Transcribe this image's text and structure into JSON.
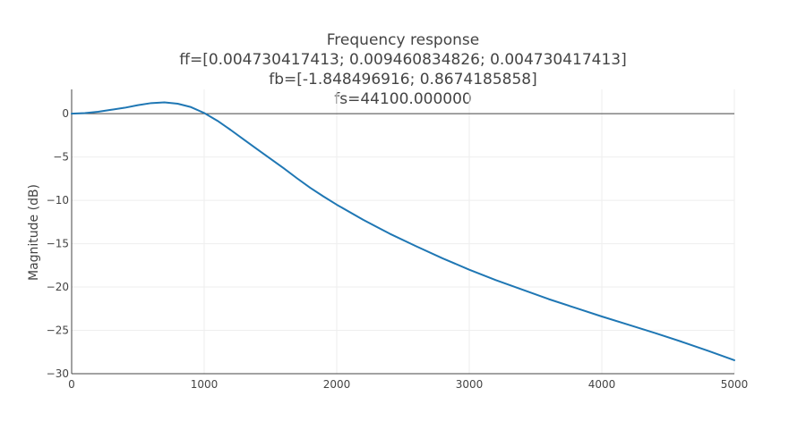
{
  "chart_data": {
    "type": "line",
    "title_lines": [
      "Frequency response",
      "ff=[0.004730417413; 0.009460834826; 0.004730417413]",
      "fb=[-1.848496916; 0.8674185858]",
      "fs=44100.000000"
    ],
    "xlabel": "",
    "ylabel": "Magnitude (dB)",
    "xlim": [
      0,
      5000
    ],
    "ylim": [
      -30,
      2.8
    ],
    "x_ticks": [
      0,
      1000,
      2000,
      3000,
      4000,
      5000
    ],
    "y_ticks": [
      0,
      -5,
      -10,
      -15,
      -20,
      -25,
      -30
    ],
    "y_tick_labels": [
      "0",
      "−5",
      "−10",
      "−15",
      "−20",
      "−25",
      "−30"
    ],
    "grid": true,
    "zero_line": true,
    "series": [
      {
        "color": "#1f77b4",
        "x": [
          0,
          100,
          200,
          300,
          400,
          500,
          600,
          700,
          800,
          900,
          1000,
          1100,
          1200,
          1300,
          1400,
          1500,
          1600,
          1700,
          1800,
          1900,
          2000,
          2200,
          2400,
          2600,
          2800,
          3000,
          3200,
          3400,
          3600,
          3800,
          4000,
          4200,
          4400,
          4600,
          4800,
          5000
        ],
        "y": [
          0.0,
          0.07,
          0.22,
          0.45,
          0.68,
          0.98,
          1.22,
          1.3,
          1.15,
          0.76,
          0.08,
          -0.82,
          -1.88,
          -3.0,
          -4.1,
          -5.2,
          -6.3,
          -7.45,
          -8.55,
          -9.55,
          -10.5,
          -12.25,
          -13.85,
          -15.3,
          -16.7,
          -18.0,
          -19.2,
          -20.3,
          -21.4,
          -22.4,
          -23.4,
          -24.35,
          -25.3,
          -26.3,
          -27.35,
          -28.45
        ]
      }
    ]
  }
}
